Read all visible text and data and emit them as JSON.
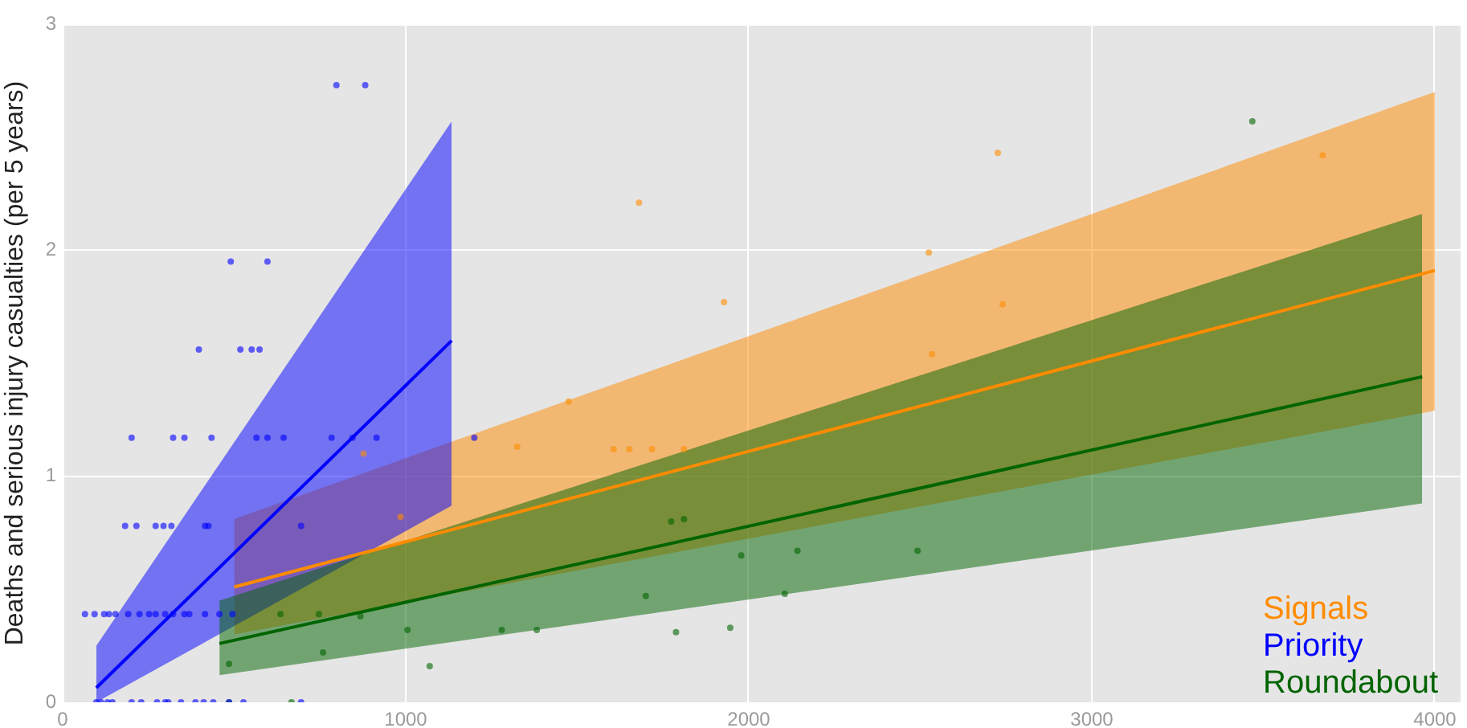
{
  "chart_data": {
    "type": "scatter",
    "ylabel": "Deaths and serious injury casualties (per 5 years)",
    "xlim": [
      0,
      4075
    ],
    "ylim": [
      0,
      3
    ],
    "xticks": [
      0,
      1000,
      2000,
      3000,
      4000
    ],
    "yticks": [
      0,
      1,
      2,
      3
    ],
    "grid": true,
    "legend": "bottom right",
    "line_style": "solid",
    "series": [
      {
        "type": "line",
        "name": "Signals",
        "color": "#ff8c00",
        "marker": "none",
        "x": [
          500,
          4000
        ],
        "values": [
          0.51,
          1.91
        ],
        "lower": [
          0.3,
          1.29
        ],
        "upper": [
          0.81,
          2.7
        ]
      },
      {
        "type": "line",
        "name": "Priority",
        "color": "#0000ff",
        "marker": "none",
        "x": [
          98,
          1134
        ],
        "values": [
          0.064,
          1.6
        ],
        "lower": [
          0,
          0.87
        ],
        "upper": [
          0.25,
          2.57
        ]
      },
      {
        "type": "line",
        "name": "Roundabout",
        "color": "#006400",
        "marker": "none",
        "x": [
          457,
          3963
        ],
        "values": [
          0.26,
          1.44
        ],
        "lower": [
          0.12,
          0.88
        ],
        "upper": [
          0.45,
          2.16
        ]
      },
      {
        "marker": "circle",
        "color": "#0000ff",
        "x": [
          98,
          112,
          131,
          145,
          201,
          229,
          275,
          299,
          308,
          345,
          387,
          411,
          439,
          485,
          527,
          695,
          65,
          93,
          121,
          135,
          154,
          191,
          224,
          252,
          271,
          299,
          322,
          355,
          369,
          415,
          457,
          495,
          182,
          215,
          271,
          294,
          317,
          415,
          425,
          695,
          201,
          322,
          355,
          434,
          565,
          597,
          644,
          784,
          845,
          915,
          1200,
          397,
          518,
          551,
          574,
          490,
          597,
          798,
          882
        ],
        "values": [
          0,
          0,
          0,
          0,
          0,
          0,
          0,
          0,
          0,
          0,
          0,
          0,
          0,
          0,
          0,
          0,
          0.39,
          0.39,
          0.39,
          0.39,
          0.39,
          0.39,
          0.39,
          0.39,
          0.39,
          0.39,
          0.39,
          0.39,
          0.39,
          0.39,
          0.39,
          0.39,
          0.78,
          0.78,
          0.78,
          0.78,
          0.78,
          0.78,
          0.78,
          0.78,
          1.17,
          1.17,
          1.17,
          1.17,
          1.17,
          1.17,
          1.17,
          1.17,
          1.17,
          1.17,
          1.17,
          1.56,
          1.56,
          1.56,
          1.56,
          1.95,
          1.95,
          2.73,
          2.73
        ]
      },
      {
        "marker": "circle",
        "color": "#ff8c00",
        "x": [
          1680,
          1928,
          2525,
          1475,
          1325,
          1606,
          1652,
          1718,
          1811,
          2534,
          2726,
          2740,
          3673,
          877,
          985
        ],
        "values": [
          2.21,
          1.77,
          1.99,
          1.33,
          1.13,
          1.12,
          1.12,
          1.12,
          1.12,
          1.54,
          2.43,
          1.76,
          2.42,
          1.1,
          0.82
        ]
      },
      {
        "marker": "circle",
        "color": "#006400",
        "x": [
          485,
          667,
          485,
          759,
          1005,
          1070,
          1280,
          635,
          747,
          868,
          1382,
          1700,
          1788,
          1946,
          1978,
          2142,
          2492,
          2105,
          1774,
          1811,
          3468
        ],
        "values": [
          0,
          0,
          0.17,
          0.22,
          0.32,
          0.16,
          0.32,
          0.39,
          0.39,
          0.38,
          0.32,
          0.47,
          0.31,
          0.33,
          0.65,
          0.67,
          0.67,
          0.48,
          0.8,
          0.81,
          2.57
        ]
      }
    ]
  }
}
